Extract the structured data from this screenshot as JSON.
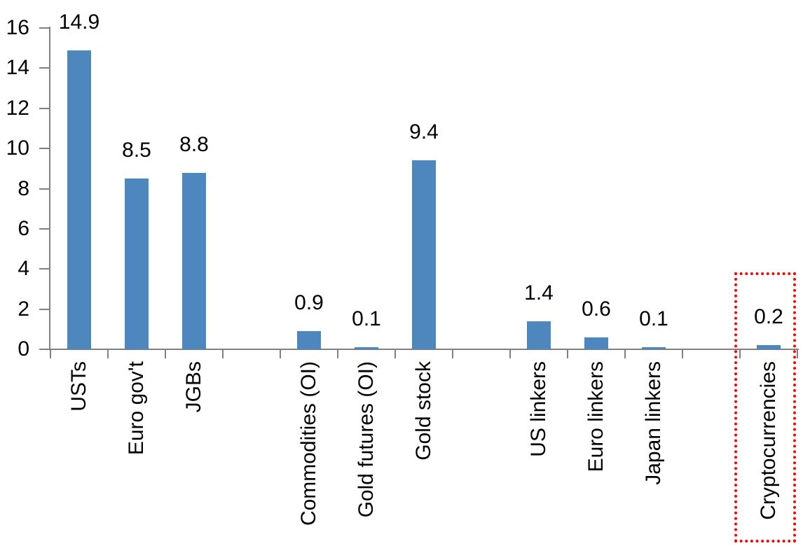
{
  "chart_data": {
    "type": "bar",
    "title": "",
    "xlabel": "",
    "ylabel": "",
    "categories": [
      "USTs",
      "Euro gov't",
      "JGBs",
      "Commodities (OI)",
      "Gold futures (OI)",
      "Gold stock",
      "US linkers",
      "Euro linkers",
      "Japan linkers",
      "Cryptocurrencies"
    ],
    "values": [
      14.9,
      8.5,
      8.8,
      0.9,
      0.1,
      9.4,
      1.4,
      0.6,
      0.1,
      0.2
    ],
    "data_labels": [
      "14.9",
      "8.5",
      "8.8",
      "0.9",
      "0.1",
      "9.4",
      "1.4",
      "0.6",
      "0.1",
      "0.2"
    ],
    "slot_index": [
      0,
      1,
      2,
      4,
      5,
      6,
      8,
      9,
      10,
      12
    ],
    "n_slots": 13,
    "ylim": [
      0,
      16
    ],
    "yticks": [
      0,
      2,
      4,
      6,
      8,
      10,
      12,
      14,
      16
    ],
    "ytick_labels": [
      "0",
      "2",
      "4",
      "6",
      "8",
      "10",
      "12",
      "14",
      "16"
    ],
    "grid": false,
    "legend": false,
    "bar_color": "#4E86BE",
    "axis_color": "#808080",
    "text_color": "#000000",
    "background_color": "#FFFFFF",
    "highlight": {
      "category": "Cryptocurrencies",
      "shape": "dotted-rectangle",
      "color": "#FF0000"
    }
  }
}
